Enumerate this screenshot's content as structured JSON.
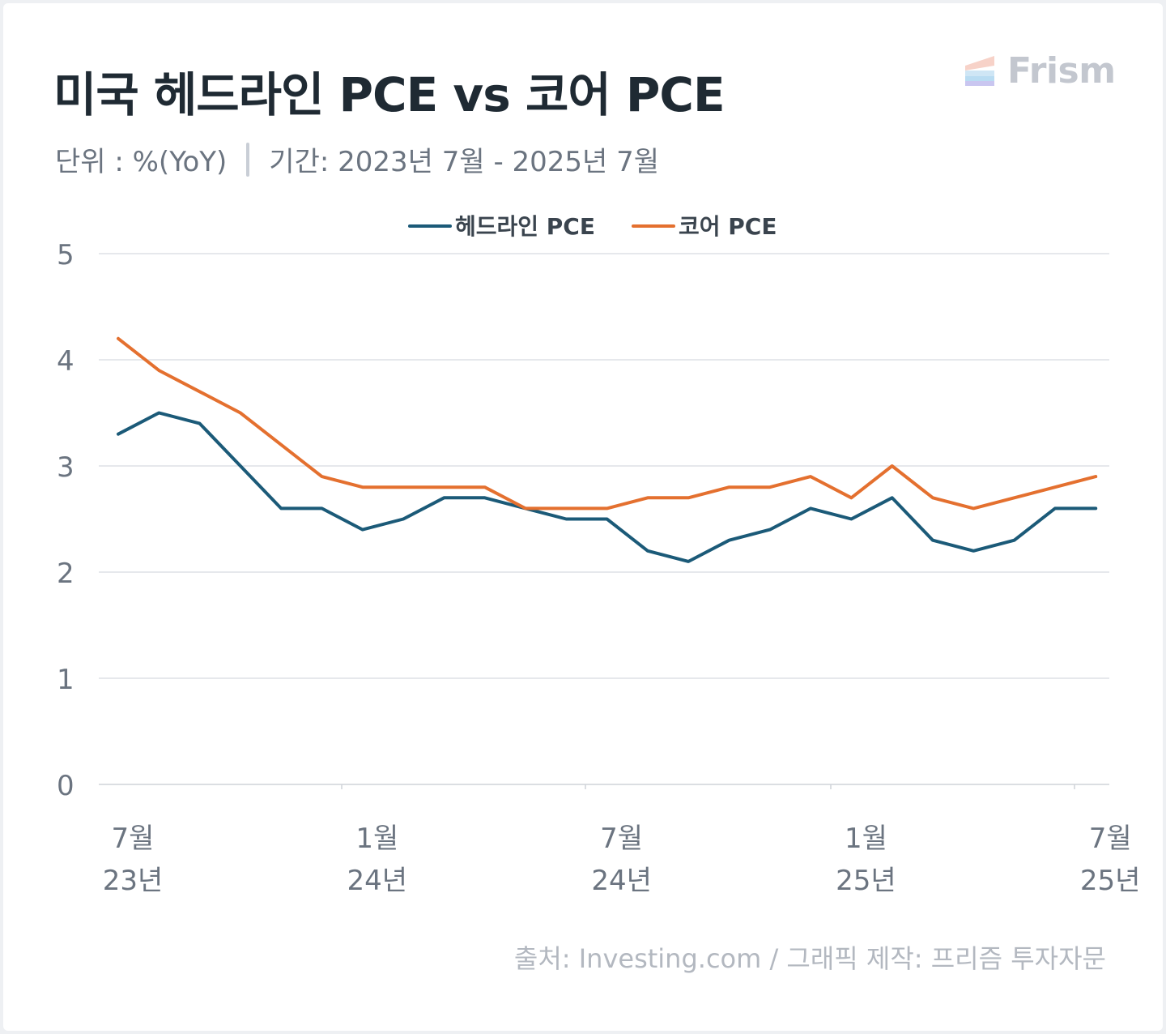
{
  "header": {
    "title": "미국 헤드라인 PCE vs 코어 PCE",
    "unit": "단위 : %(YoY)",
    "period": "기간: 2023년 7월 - 2025년 7월"
  },
  "brand": {
    "name": "Frism",
    "logo_icon": "frism-logo-icon"
  },
  "source": "출처: Investing.com / 그래픽 제작: 프리즘 투자자문",
  "colors": {
    "headline": "#1b5a78",
    "core": "#e4702f",
    "grid": "#dde0e5",
    "axis_text": "#6b7480"
  },
  "chart_data": {
    "type": "line",
    "title": "미국 헤드라인 PCE vs 코어 PCE",
    "x": [
      "2023-07",
      "2023-08",
      "2023-09",
      "2023-10",
      "2023-11",
      "2023-12",
      "2024-01",
      "2024-02",
      "2024-03",
      "2024-04",
      "2024-05",
      "2024-06",
      "2024-07",
      "2024-08",
      "2024-09",
      "2024-10",
      "2024-11",
      "2024-12",
      "2025-01",
      "2025-02",
      "2025-03",
      "2025-04",
      "2025-05",
      "2025-06",
      "2025-07"
    ],
    "series": [
      {
        "name": "헤드라인 PCE",
        "color": "#1b5a78",
        "values": [
          3.3,
          3.5,
          3.4,
          3.0,
          2.6,
          2.6,
          2.4,
          2.5,
          2.7,
          2.7,
          2.6,
          2.5,
          2.5,
          2.2,
          2.1,
          2.3,
          2.4,
          2.6,
          2.5,
          2.7,
          2.3,
          2.2,
          2.3,
          2.6,
          2.6
        ]
      },
      {
        "name": "코어 PCE",
        "color": "#e4702f",
        "values": [
          4.2,
          3.9,
          3.7,
          3.5,
          3.2,
          2.9,
          2.8,
          2.8,
          2.8,
          2.8,
          2.6,
          2.6,
          2.6,
          2.7,
          2.7,
          2.8,
          2.8,
          2.9,
          2.7,
          3.0,
          2.7,
          2.6,
          2.7,
          2.8,
          2.9
        ]
      }
    ],
    "ylim": [
      0,
      5
    ],
    "yticks": [
      "0",
      "1",
      "2",
      "3",
      "4",
      "5"
    ],
    "xtick_labels": [
      {
        "month": "7월",
        "year": "23년"
      },
      {
        "month": "1월",
        "year": "24년"
      },
      {
        "month": "7월",
        "year": "24년"
      },
      {
        "month": "1월",
        "year": "25년"
      },
      {
        "month": "7월",
        "year": "25년"
      }
    ],
    "grid": true,
    "legend": "top-center"
  }
}
